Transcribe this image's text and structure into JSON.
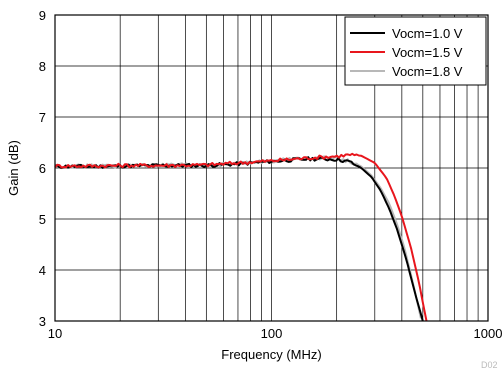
{
  "chart_data": {
    "type": "line",
    "title": "",
    "xlabel": "Frequency (MHz)",
    "ylabel": "Gain (dB)",
    "xscale": "log",
    "xlim": [
      10,
      1000
    ],
    "ylim": [
      3,
      9
    ],
    "x_ticks": [
      "10",
      "100",
      "1000"
    ],
    "y_ticks": [
      "3",
      "4",
      "5",
      "6",
      "7",
      "8",
      "9"
    ],
    "grid": true,
    "legend_position": "top-right",
    "figure_id": "D02",
    "series": [
      {
        "name": "Vocm=1.0 V",
        "color": "#000000",
        "x": [
          10,
          15,
          20,
          30,
          50,
          70,
          100,
          150,
          200,
          230,
          260,
          290,
          320,
          350,
          380,
          420,
          460,
          500
        ],
        "y": [
          6.03,
          6.03,
          6.04,
          6.05,
          6.05,
          6.08,
          6.13,
          6.18,
          6.17,
          6.12,
          6.0,
          5.82,
          5.55,
          5.2,
          4.8,
          4.2,
          3.55,
          3.0
        ]
      },
      {
        "name": "Vocm=1.5 V",
        "color": "#e8161d",
        "x": [
          10,
          15,
          20,
          30,
          50,
          70,
          100,
          150,
          200,
          230,
          260,
          300,
          340,
          370,
          400,
          440,
          480,
          520
        ],
        "y": [
          6.04,
          6.04,
          6.05,
          6.05,
          6.06,
          6.1,
          6.14,
          6.2,
          6.23,
          6.26,
          6.24,
          6.1,
          5.8,
          5.45,
          5.05,
          4.45,
          3.75,
          3.0
        ]
      },
      {
        "name": "Vocm=1.8 V",
        "color": "#b8b8b8",
        "x": [
          10,
          15,
          20,
          30,
          50,
          70,
          100,
          150,
          200,
          230,
          260,
          290,
          320,
          350,
          380,
          410,
          450,
          490
        ],
        "y": [
          6.03,
          6.04,
          6.04,
          6.05,
          6.06,
          6.08,
          6.14,
          6.2,
          6.19,
          6.13,
          6.03,
          5.85,
          5.6,
          5.3,
          4.9,
          4.45,
          3.75,
          3.05
        ]
      }
    ]
  }
}
